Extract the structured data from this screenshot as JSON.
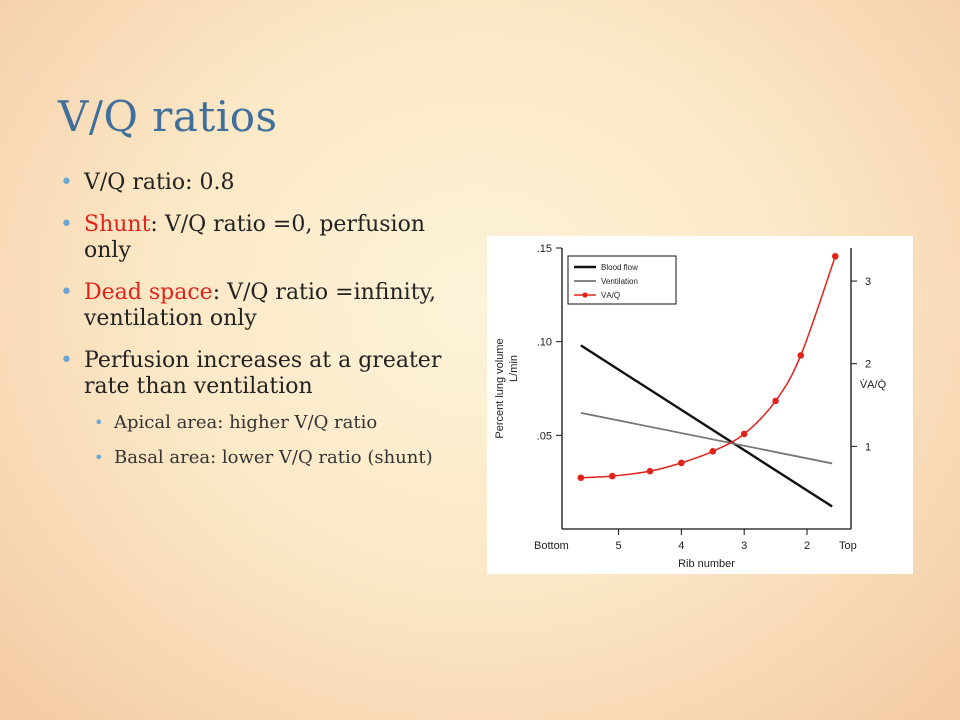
{
  "slide": {
    "title": "V/Q ratios",
    "bullets": [
      {
        "text": "V/Q ratio: 0.8"
      },
      {
        "highlight": "Shunt",
        "text": ": V/Q ratio =0, perfusion only"
      },
      {
        "highlight": "Dead space",
        "text": ": V/Q ratio =infinity, ventilation only"
      },
      {
        "text": "Perfusion increases at a greater rate than ventilation"
      }
    ],
    "sub_bullets": [
      "Apical area: higher V/Q ratio",
      "Basal area: lower V/Q ratio (shunt)"
    ]
  },
  "colors": {
    "title": "#3f6f9a",
    "highlight": "#e2231a",
    "bullet": "#6aa6d6",
    "blood_flow": "#111111",
    "ventilation": "#777777",
    "va_q": "#e2231a"
  },
  "chart_data": {
    "type": "line",
    "xlabel": "Rib number",
    "ylabel_left": "Percent lung volume",
    "ylabel_left_unit": "L/min",
    "ylabel_right": "V̇A/Q̇",
    "x_tick_labels": [
      "Bottom",
      "5",
      "4",
      "3",
      "2",
      "Top"
    ],
    "x_ticks": [
      5,
      4,
      3,
      2
    ],
    "xlim": [
      5.9,
      1.3
    ],
    "ylim_left": [
      0,
      0.15
    ],
    "y_left_ticks": [
      0.05,
      0.1,
      0.15
    ],
    "y_left_tick_labels": [
      ".05",
      ".10",
      ".15"
    ],
    "ylim_right": [
      0,
      3.4
    ],
    "y_right_ticks": [
      1,
      2,
      3
    ],
    "y_right_tick_labels": [
      "1",
      "2",
      "3"
    ],
    "legend": [
      "Blood flow",
      "Ventilation",
      "V̇A/Q̇"
    ],
    "legend_position": "top-left",
    "series": [
      {
        "name": "Blood flow",
        "axis": "left",
        "x": [
          5.6,
          1.6
        ],
        "y": [
          0.098,
          0.012
        ]
      },
      {
        "name": "Ventilation",
        "axis": "left",
        "x": [
          5.6,
          1.6
        ],
        "y": [
          0.062,
          0.035
        ]
      },
      {
        "name": "V̇A/Q̇",
        "axis": "right",
        "marker": "circle",
        "x": [
          5.6,
          5.1,
          4.5,
          4.0,
          3.5,
          3.0,
          2.5,
          2.1,
          1.55
        ],
        "y": [
          0.62,
          0.64,
          0.7,
          0.8,
          0.94,
          1.15,
          1.55,
          2.1,
          3.3
        ]
      }
    ]
  }
}
